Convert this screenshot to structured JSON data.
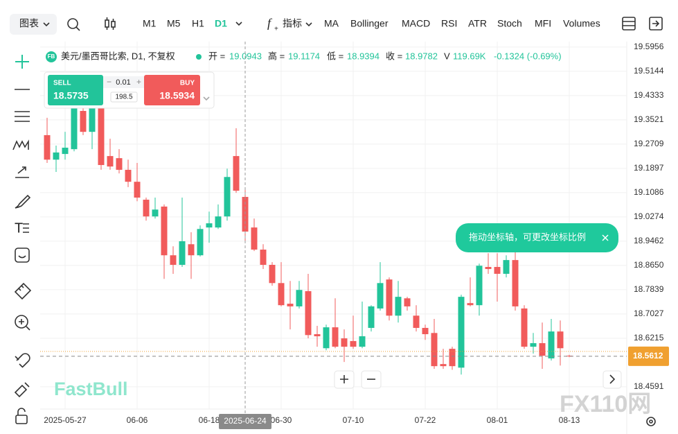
{
  "toolbar": {
    "chart": "图表",
    "timeframes": [
      "M1",
      "M5",
      "H1",
      "D1"
    ],
    "indicators_label": "指标",
    "indicators": [
      "MA",
      "Bollinger",
      "MACD",
      "RSI",
      "ATR",
      "Stoch",
      "MFI",
      "Volumes"
    ]
  },
  "info_bar": {
    "badge": "FB",
    "open_label": "开 =",
    "high_label": "高 =",
    "low_label": "低 =",
    "close_label": "收 =",
    "volume_label": "V",
    "volume": "119.69K",
    "change": "-0.1324 (-0.69%)"
  },
  "trade_panel": {
    "sell_label": "SELL",
    "sell_price": "18.5735",
    "lot": "0.01",
    "spread": "198.5",
    "buy_label": "BUY",
    "buy_price": "18.5934"
  },
  "tooltip": "拖动坐标轴，可更改坐标比例",
  "logo": "FastBull",
  "watermark": "FX110网",
  "chart_data": {
    "type": "candlestick",
    "title": "美元/墨西哥比索, D1, 不复权",
    "categories": [
      null,
      null,
      "2025-05-27",
      null,
      null,
      null,
      null,
      null,
      null,
      null,
      "06-06",
      null,
      null,
      null,
      null,
      null,
      null,
      null,
      "06-18",
      null,
      null,
      null,
      null,
      null,
      null,
      null,
      "06-30",
      null,
      null,
      null,
      null,
      null,
      null,
      null,
      "07-10",
      null,
      null,
      null,
      null,
      null,
      null,
      null,
      "07-22",
      null,
      null,
      null,
      null,
      null,
      null,
      null,
      "08-01",
      null,
      null,
      null,
      null,
      null,
      null,
      null,
      "08-13"
    ],
    "open": [
      19.301,
      19.219,
      19.238,
      19.254,
      19.382,
      19.312,
      19.393,
      19.231,
      19.224,
      19.185,
      19.145,
      19.085,
      19.029,
      19.062,
      18.899,
      18.867,
      18.936,
      18.899,
      18.992,
      18.992,
      19.029,
      19.231,
      19.0943,
      18.992,
      18.918,
      18.867,
      18.806,
      18.737,
      18.728,
      18.779,
      18.635,
      18.588,
      18.658,
      18.621,
      18.612,
      18.593,
      18.656,
      18.721,
      18.818,
      18.697,
      18.755,
      18.697,
      18.656,
      18.639,
      18.535,
      18.586,
      18.523,
      18.739,
      18.732,
      18.86,
      18.86,
      18.837,
      18.883,
      18.721,
      18.593,
      18.605,
      18.554,
      18.644,
      18.563
    ],
    "high": [
      19.359,
      19.266,
      19.312,
      19.405,
      19.405,
      19.405,
      19.405,
      19.289,
      19.254,
      19.219,
      19.208,
      19.092,
      19.092,
      19.069,
      18.929,
      19.092,
      18.976,
      18.999,
      19.045,
      19.069,
      19.189,
      19.324,
      19.1174,
      19.022,
      18.936,
      18.876,
      18.876,
      18.813,
      18.813,
      18.837,
      18.663,
      18.667,
      18.755,
      18.651,
      18.697,
      18.744,
      18.732,
      18.876,
      18.825,
      18.813,
      18.76,
      18.732,
      18.667,
      18.686,
      18.586,
      18.593,
      18.767,
      18.825,
      18.871,
      18.906,
      18.906,
      18.899,
      18.964,
      18.732,
      18.639,
      18.674,
      18.686,
      18.681,
      18.566
    ],
    "low": [
      19.208,
      19.178,
      19.219,
      19.247,
      19.301,
      19.254,
      19.185,
      19.185,
      19.173,
      19.127,
      19.08,
      19.015,
      19.022,
      18.82,
      18.837,
      18.86,
      18.82,
      18.895,
      18.941,
      18.987,
      19.015,
      19.108,
      18.9394,
      18.913,
      18.853,
      18.797,
      18.728,
      18.651,
      18.721,
      18.621,
      18.593,
      18.581,
      18.588,
      18.542,
      18.586,
      18.588,
      18.644,
      18.714,
      18.681,
      18.674,
      18.714,
      18.644,
      18.616,
      18.519,
      18.519,
      18.516,
      18.5,
      18.728,
      18.697,
      18.837,
      18.744,
      18.825,
      18.714,
      18.586,
      18.57,
      18.519,
      18.547,
      18.53,
      18.558
    ],
    "close": [
      19.219,
      19.243,
      19.259,
      19.393,
      19.312,
      19.393,
      19.201,
      19.196,
      19.185,
      19.145,
      19.092,
      19.029,
      19.052,
      18.899,
      18.867,
      18.946,
      18.899,
      18.987,
      19.006,
      19.029,
      19.161,
      19.115,
      18.9782,
      18.918,
      18.867,
      18.806,
      18.732,
      18.728,
      18.783,
      18.632,
      18.628,
      18.658,
      18.593,
      18.593,
      18.593,
      18.628,
      18.728,
      18.806,
      18.697,
      18.76,
      18.728,
      18.656,
      18.635,
      18.528,
      18.528,
      18.528,
      18.76,
      18.732,
      18.864,
      18.853,
      18.837,
      18.883,
      18.728,
      18.593,
      18.605,
      18.563,
      18.644,
      18.588,
      18.5612
    ],
    "up_color": "#22c49a",
    "down_color": "#f15b5b",
    "ylim": [
      18.3845,
      19.614
    ],
    "yticks": [
      19.5956,
      19.5144,
      19.4333,
      19.3521,
      19.2709,
      19.1897,
      19.1086,
      19.0274,
      18.9462,
      {
        "value": 18.865,
        "label": "18.8650"
      },
      18.7839,
      18.7027,
      18.6215,
      18.4591
    ],
    "last_price": 18.5612,
    "crosshair_label": "2025-06-24",
    "crosshair_index": 22,
    "grid": true
  }
}
